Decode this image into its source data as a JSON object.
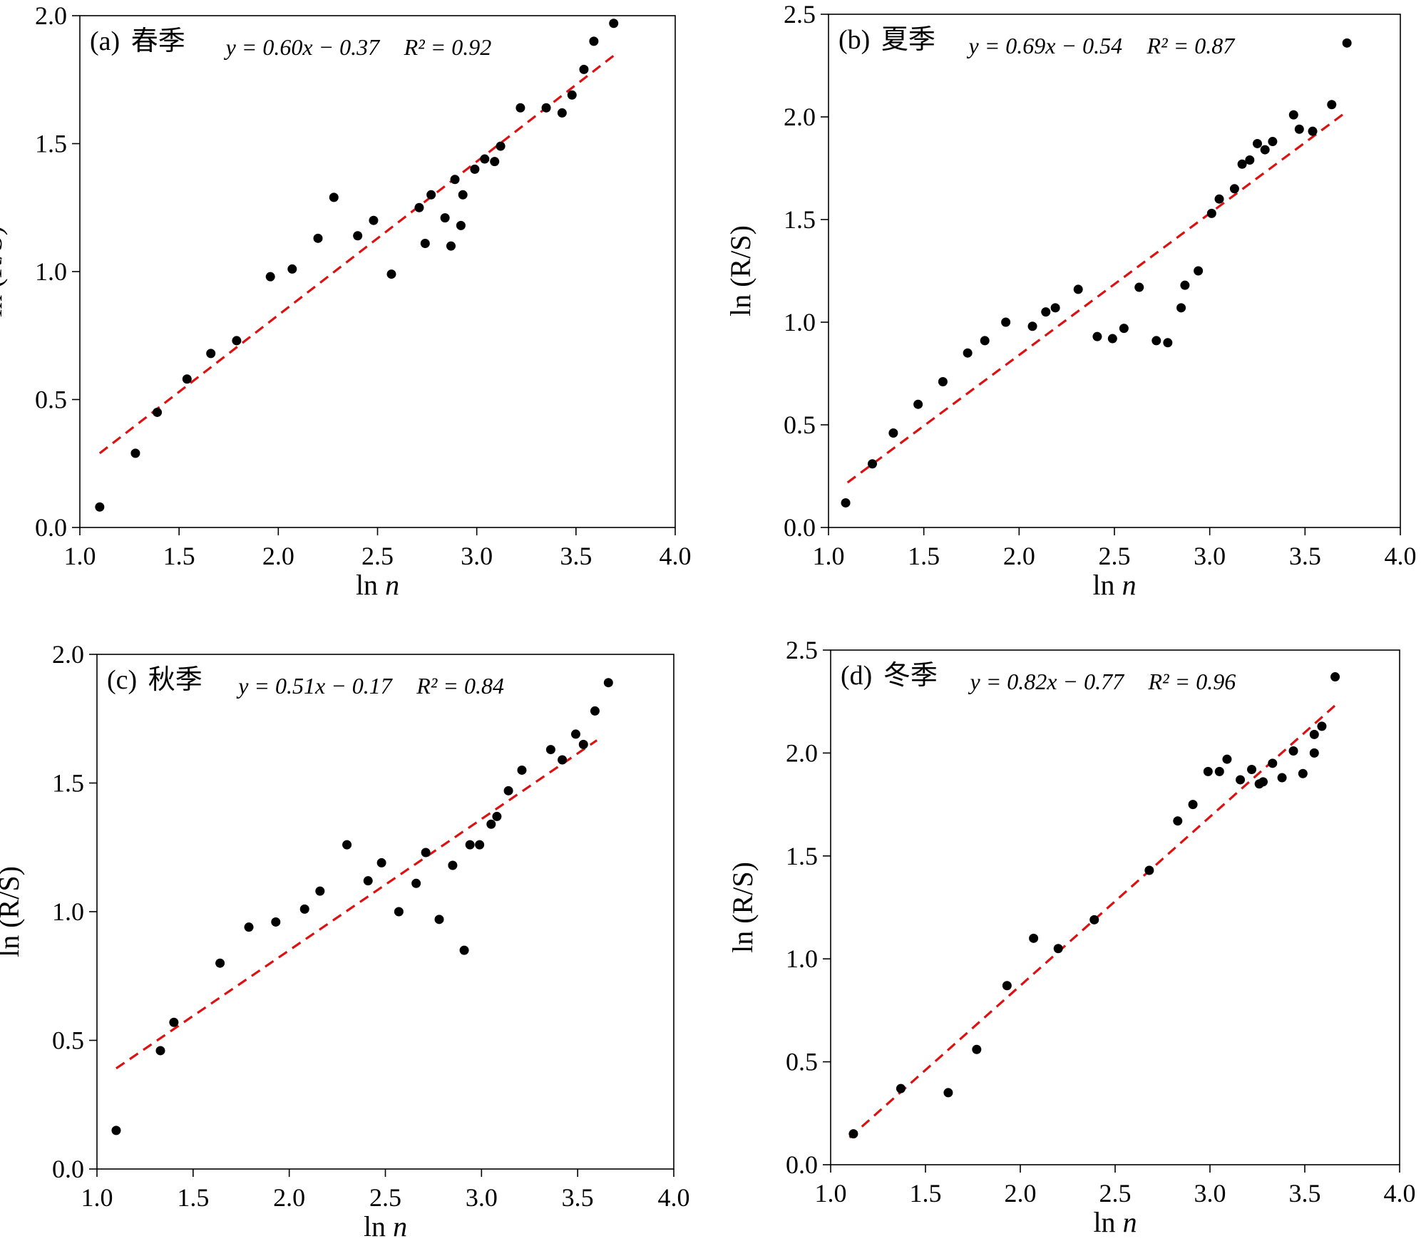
{
  "chart_data": [
    {
      "type": "scatter",
      "panel": "(a)",
      "season": "春季",
      "xlabel_prefix": "ln",
      "xlabel_var": "n",
      "ylabel": "ln (R/S)",
      "xlim": [
        1.0,
        4.0
      ],
      "ylim": [
        0.0,
        2.0
      ],
      "xticks": [
        "1.0",
        "1.5",
        "2.0",
        "2.5",
        "3.0",
        "3.5",
        "4.0"
      ],
      "yticks": [
        "0.0",
        "0.5",
        "1.0",
        "1.5",
        "2.0"
      ],
      "equation": "y = 0.60x − 0.37",
      "r2": "R² = 0.92",
      "fit": {
        "slope": 0.6,
        "intercept": -0.37,
        "x_range": [
          1.1,
          3.7
        ]
      },
      "points": [
        [
          1.1,
          0.08
        ],
        [
          1.28,
          0.29
        ],
        [
          1.39,
          0.45
        ],
        [
          1.54,
          0.58
        ],
        [
          1.66,
          0.68
        ],
        [
          1.79,
          0.73
        ],
        [
          1.96,
          0.98
        ],
        [
          2.07,
          1.01
        ],
        [
          2.2,
          1.13
        ],
        [
          2.28,
          1.29
        ],
        [
          2.4,
          1.14
        ],
        [
          2.48,
          1.2
        ],
        [
          2.57,
          0.99
        ],
        [
          2.71,
          1.25
        ],
        [
          2.74,
          1.11
        ],
        [
          2.77,
          1.3
        ],
        [
          2.84,
          1.21
        ],
        [
          2.87,
          1.1
        ],
        [
          2.89,
          1.36
        ],
        [
          2.92,
          1.18
        ],
        [
          2.93,
          1.3
        ],
        [
          2.99,
          1.4
        ],
        [
          3.04,
          1.44
        ],
        [
          3.09,
          1.43
        ],
        [
          3.12,
          1.49
        ],
        [
          3.22,
          1.64
        ],
        [
          3.35,
          1.64
        ],
        [
          3.43,
          1.62
        ],
        [
          3.48,
          1.69
        ],
        [
          3.54,
          1.79
        ],
        [
          3.59,
          1.9
        ],
        [
          3.69,
          1.97
        ]
      ]
    },
    {
      "type": "scatter",
      "panel": "(b)",
      "season": "夏季",
      "xlabel_prefix": "ln",
      "xlabel_var": "n",
      "ylabel": "ln (R/S)",
      "xlim": [
        1.0,
        4.0
      ],
      "ylim": [
        0.0,
        2.5
      ],
      "xticks": [
        "1.0",
        "1.5",
        "2.0",
        "2.5",
        "3.0",
        "3.5",
        "4.0"
      ],
      "yticks": [
        "0.0",
        "0.5",
        "1.0",
        "1.5",
        "2.0",
        "2.5"
      ],
      "equation": "y = 0.69x − 0.54",
      "r2": "R² = 0.87",
      "fit": {
        "slope": 0.69,
        "intercept": -0.54,
        "x_range": [
          1.1,
          3.7
        ]
      },
      "points": [
        [
          1.09,
          0.12
        ],
        [
          1.23,
          0.31
        ],
        [
          1.34,
          0.46
        ],
        [
          1.47,
          0.6
        ],
        [
          1.6,
          0.71
        ],
        [
          1.73,
          0.85
        ],
        [
          1.82,
          0.91
        ],
        [
          1.93,
          1.0
        ],
        [
          2.07,
          0.98
        ],
        [
          2.14,
          1.05
        ],
        [
          2.19,
          1.07
        ],
        [
          2.31,
          1.16
        ],
        [
          2.41,
          0.93
        ],
        [
          2.49,
          0.92
        ],
        [
          2.55,
          0.97
        ],
        [
          2.63,
          1.17
        ],
        [
          2.72,
          0.91
        ],
        [
          2.78,
          0.9
        ],
        [
          2.85,
          1.07
        ],
        [
          2.87,
          1.18
        ],
        [
          2.94,
          1.25
        ],
        [
          3.01,
          1.53
        ],
        [
          3.05,
          1.6
        ],
        [
          3.13,
          1.65
        ],
        [
          3.17,
          1.77
        ],
        [
          3.21,
          1.79
        ],
        [
          3.25,
          1.87
        ],
        [
          3.29,
          1.84
        ],
        [
          3.33,
          1.88
        ],
        [
          3.44,
          2.01
        ],
        [
          3.47,
          1.94
        ],
        [
          3.54,
          1.93
        ],
        [
          3.64,
          2.06
        ],
        [
          3.72,
          2.36
        ]
      ]
    },
    {
      "type": "scatter",
      "panel": "(c)",
      "season": "秋季",
      "xlabel_prefix": "ln",
      "xlabel_var": "n",
      "ylabel": "ln (R/S)",
      "xlim": [
        1.0,
        4.0
      ],
      "ylim": [
        0.0,
        2.0
      ],
      "xticks": [
        "1.0",
        "1.5",
        "2.0",
        "2.5",
        "3.0",
        "3.5",
        "4.0"
      ],
      "yticks": [
        "0.0",
        "0.5",
        "1.0",
        "1.5",
        "2.0"
      ],
      "equation": "y = 0.51x − 0.17",
      "r2": "R² = 0.84",
      "fit": {
        "slope": 0.51,
        "intercept": -0.17,
        "x_range": [
          1.1,
          3.6
        ]
      },
      "points": [
        [
          1.1,
          0.15
        ],
        [
          1.33,
          0.46
        ],
        [
          1.4,
          0.57
        ],
        [
          1.64,
          0.8
        ],
        [
          1.79,
          0.94
        ],
        [
          1.93,
          0.96
        ],
        [
          2.08,
          1.01
        ],
        [
          2.16,
          1.08
        ],
        [
          2.3,
          1.26
        ],
        [
          2.41,
          1.12
        ],
        [
          2.48,
          1.19
        ],
        [
          2.57,
          1.0
        ],
        [
          2.66,
          1.11
        ],
        [
          2.71,
          1.23
        ],
        [
          2.78,
          0.97
        ],
        [
          2.85,
          1.18
        ],
        [
          2.91,
          0.85
        ],
        [
          2.94,
          1.26
        ],
        [
          2.99,
          1.26
        ],
        [
          3.05,
          1.34
        ],
        [
          3.08,
          1.37
        ],
        [
          3.14,
          1.47
        ],
        [
          3.21,
          1.55
        ],
        [
          3.36,
          1.63
        ],
        [
          3.42,
          1.59
        ],
        [
          3.49,
          1.69
        ],
        [
          3.53,
          1.65
        ],
        [
          3.59,
          1.78
        ],
        [
          3.66,
          1.89
        ]
      ]
    },
    {
      "type": "scatter",
      "panel": "(d)",
      "season": "冬季",
      "xlabel_prefix": "ln",
      "xlabel_var": "n",
      "ylabel": "ln (R/S)",
      "xlim": [
        1.0,
        4.0
      ],
      "ylim": [
        0.0,
        2.5
      ],
      "xticks": [
        "1.0",
        "1.5",
        "2.0",
        "2.5",
        "3.0",
        "3.5",
        "4.0"
      ],
      "yticks": [
        "0.0",
        "0.5",
        "1.0",
        "1.5",
        "2.0",
        "2.5"
      ],
      "equation": "y = 0.82x − 0.77",
      "r2": "R² = 0.96",
      "fit": {
        "slope": 0.82,
        "intercept": -0.77,
        "x_range": [
          1.1,
          3.66
        ]
      },
      "points": [
        [
          1.12,
          0.15
        ],
        [
          1.37,
          0.37
        ],
        [
          1.62,
          0.35
        ],
        [
          1.77,
          0.56
        ],
        [
          1.93,
          0.87
        ],
        [
          2.07,
          1.1
        ],
        [
          2.2,
          1.05
        ],
        [
          2.39,
          1.19
        ],
        [
          2.68,
          1.43
        ],
        [
          2.83,
          1.67
        ],
        [
          2.91,
          1.75
        ],
        [
          2.99,
          1.91
        ],
        [
          3.05,
          1.91
        ],
        [
          3.09,
          1.97
        ],
        [
          3.16,
          1.87
        ],
        [
          3.22,
          1.92
        ],
        [
          3.26,
          1.85
        ],
        [
          3.28,
          1.86
        ],
        [
          3.33,
          1.95
        ],
        [
          3.38,
          1.88
        ],
        [
          3.44,
          2.01
        ],
        [
          3.49,
          1.9
        ],
        [
          3.55,
          2.0
        ],
        [
          3.55,
          2.09
        ],
        [
          3.59,
          2.13
        ],
        [
          3.66,
          2.37
        ]
      ]
    }
  ]
}
